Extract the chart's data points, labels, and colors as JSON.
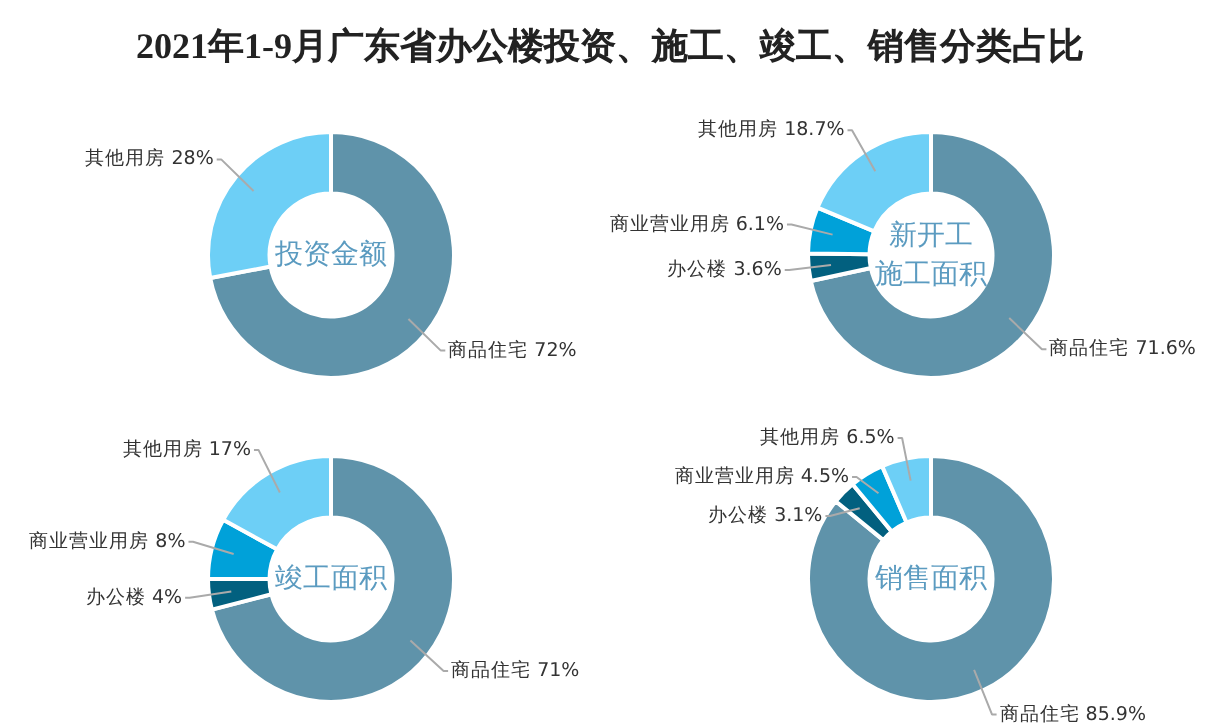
{
  "chart_data": [
    {
      "type": "donut",
      "title": "2021年1-9月广东省办公楼投资、施工、竣工、销售分类占比",
      "annotations": [
        "投资金额"
      ],
      "categories": [
        "商品住宅",
        "其他用房"
      ],
      "values": [
        72,
        28
      ],
      "value_labels": [
        "72%",
        "28%"
      ],
      "colors": [
        "#5f93aa",
        "#6dcff6"
      ],
      "legend": false
    },
    {
      "type": "donut",
      "annotations": [
        "新开工",
        "施工面积"
      ],
      "categories": [
        "商品住宅",
        "办公楼",
        "商业营业用房",
        "其他用房"
      ],
      "values": [
        71.6,
        3.6,
        6.1,
        18.7
      ],
      "value_labels": [
        "71.6%",
        "3.6%",
        "6.1%",
        "18.7%"
      ],
      "colors": [
        "#5f93aa",
        "#02607f",
        "#00a1d9",
        "#6dcff6"
      ],
      "legend": false
    },
    {
      "type": "donut",
      "annotations": [
        "竣工面积"
      ],
      "categories": [
        "商品住宅",
        "办公楼",
        "商业营业用房",
        "其他用房"
      ],
      "values": [
        71,
        4,
        8,
        17
      ],
      "value_labels": [
        "71%",
        "4%",
        "8%",
        "17%"
      ],
      "colors": [
        "#5f93aa",
        "#02607f",
        "#00a1d9",
        "#6dcff6"
      ],
      "legend": false
    },
    {
      "type": "donut",
      "annotations": [
        "销售面积"
      ],
      "categories": [
        "商品住宅",
        "办公楼",
        "商业营业用房",
        "其他用房"
      ],
      "values": [
        85.9,
        3.1,
        4.5,
        6.5
      ],
      "value_labels": [
        "85.9%",
        "3.1%",
        "4.5%",
        "6.5%"
      ],
      "colors": [
        "#5f93aa",
        "#02607f",
        "#00a1d9",
        "#6dcff6"
      ],
      "legend": false
    }
  ]
}
